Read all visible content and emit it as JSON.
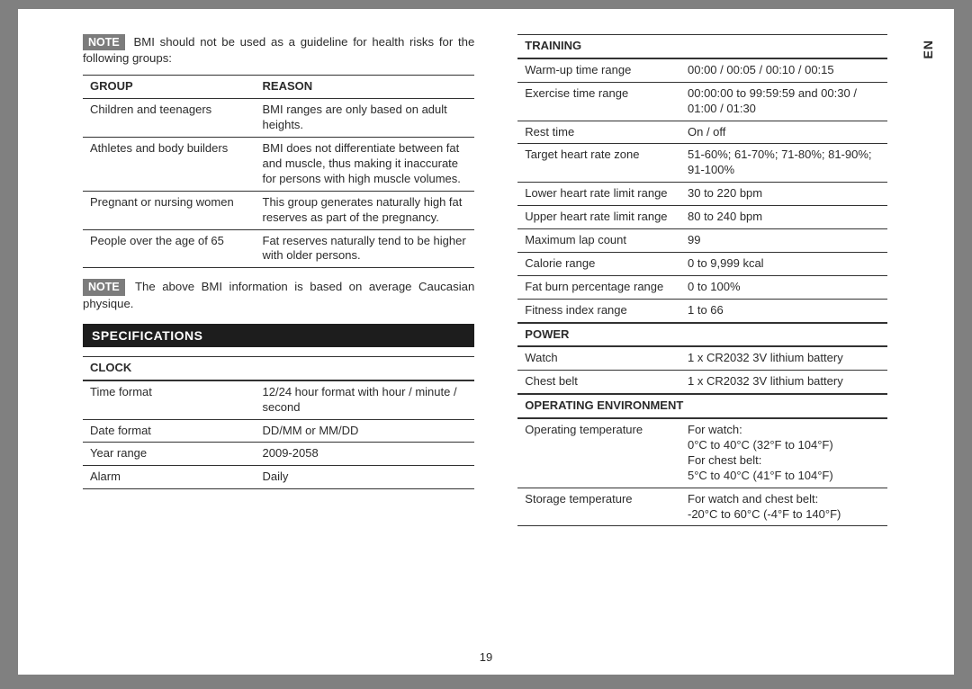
{
  "lang_tag": "EN",
  "page_number": "19",
  "left": {
    "note1_badge": "NOTE",
    "note1_text": " BMI should not be used as a guideline for health risks for the following groups:",
    "bmi_table": {
      "headers": [
        "Group",
        "Reason"
      ],
      "rows": [
        [
          "Children and teenagers",
          "BMI ranges are only based on adult heights."
        ],
        [
          "Athletes and body builders",
          "BMI does not differentiate between fat and muscle, thus making it inaccurate for persons with high muscle volumes."
        ],
        [
          "Pregnant or nursing women",
          "This group generates naturally high fat reserves as part of the pregnancy."
        ],
        [
          "People over the age of 65",
          "Fat reserves naturally tend to be higher with older persons."
        ]
      ]
    },
    "note2_badge": "NOTE",
    "note2_text": " The above BMI information is based on average Caucasian physique.",
    "spec_heading": "SPECIFICATIONS",
    "clock": {
      "heading": "CLOCK",
      "rows": [
        [
          "Time format",
          "12/24 hour format with hour / minute / second"
        ],
        [
          "Date format",
          "DD/MM or MM/DD"
        ],
        [
          "Year range",
          "2009-2058"
        ],
        [
          "Alarm",
          "Daily"
        ]
      ]
    }
  },
  "right": {
    "training": {
      "heading": "TRAINING",
      "rows": [
        [
          "Warm-up time range",
          "00:00 / 00:05 / 00:10 / 00:15"
        ],
        [
          "Exercise time range",
          "00:00:00 to 99:59:59 and 00:30 / 01:00 / 01:30"
        ],
        [
          "Rest time",
          "On / off"
        ],
        [
          "Target heart rate zone",
          "51-60%; 61-70%; 71-80%; 81-90%; 91-100%"
        ],
        [
          "Lower heart rate limit range",
          "30 to 220 bpm"
        ],
        [
          "Upper heart rate limit range",
          "80 to 240 bpm"
        ],
        [
          "Maximum lap count",
          "99"
        ],
        [
          "Calorie range",
          "0 to 9,999 kcal"
        ],
        [
          "Fat burn percentage range",
          "0 to 100%"
        ],
        [
          "Fitness index range",
          "1 to 66"
        ]
      ]
    },
    "power": {
      "heading": "POWER",
      "rows": [
        [
          "Watch",
          "1 x CR2032 3V lithium battery"
        ],
        [
          "Chest belt",
          "1 x CR2032 3V lithium battery"
        ]
      ]
    },
    "env": {
      "heading": "OPERATING ENVIRONMENT",
      "rows": [
        [
          "Operating temperature",
          "For watch:\n0°C to 40°C (32°F to 104°F)\nFor chest belt:\n5°C to 40°C (41°F to 104°F)"
        ],
        [
          "Storage temperature",
          "For watch and chest belt:\n-20°C to 60°C (-4°F to 140°F)"
        ]
      ]
    }
  }
}
